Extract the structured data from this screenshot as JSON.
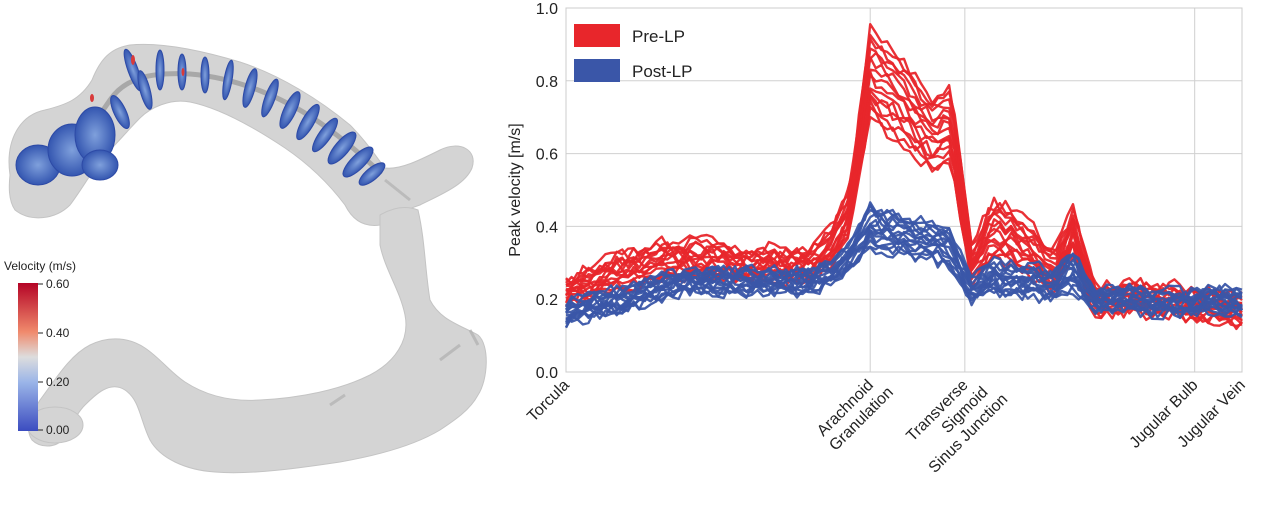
{
  "colorbar": {
    "title": "Velocity (m/s)",
    "ticks": [
      "0.60",
      "0.40",
      "0.20",
      "0.00"
    ],
    "colors": {
      "high": "#b40426",
      "mid": "#dddddd",
      "low": "#3b4cc0"
    }
  },
  "chart_data": {
    "type": "line",
    "ylabel": "Peak velocity [m/s]",
    "xlabel": "",
    "ylim": [
      0.0,
      1.0
    ],
    "yticks": [
      "0.0",
      "0.2",
      "0.4",
      "0.6",
      "0.8",
      "1.0"
    ],
    "grid": true,
    "legend_position": "top-left",
    "landmarks": [
      {
        "label": [
          "Torcula"
        ],
        "x": 0
      },
      {
        "label": [
          "Arachnoid",
          "Granulation"
        ],
        "x": 0.45
      },
      {
        "label": [
          "Transverse",
          "Sigmoid",
          "Sinus Junction"
        ],
        "x": 0.59
      },
      {
        "label": [
          "Jugular Bulb"
        ],
        "x": 0.93
      },
      {
        "label": [
          "Jugular Vein"
        ],
        "x": 1.0
      }
    ],
    "x": [
      0,
      0.03,
      0.06,
      0.09,
      0.12,
      0.15,
      0.18,
      0.21,
      0.24,
      0.27,
      0.3,
      0.33,
      0.36,
      0.39,
      0.42,
      0.45,
      0.48,
      0.51,
      0.54,
      0.57,
      0.6,
      0.63,
      0.66,
      0.69,
      0.72,
      0.75,
      0.78,
      0.81,
      0.84,
      0.87,
      0.9,
      0.93,
      0.96,
      1.0
    ],
    "series": [
      {
        "name": "Pre-LP",
        "color": "#e8262b",
        "mean": [
          0.22,
          0.24,
          0.27,
          0.28,
          0.29,
          0.31,
          0.31,
          0.31,
          0.3,
          0.29,
          0.3,
          0.29,
          0.3,
          0.34,
          0.44,
          0.82,
          0.77,
          0.72,
          0.65,
          0.68,
          0.29,
          0.39,
          0.37,
          0.33,
          0.27,
          0.39,
          0.2,
          0.2,
          0.21,
          0.19,
          0.2,
          0.18,
          0.18,
          0.17
        ],
        "spread": [
          0.03,
          0.04,
          0.04,
          0.05,
          0.05,
          0.05,
          0.05,
          0.05,
          0.04,
          0.04,
          0.04,
          0.04,
          0.04,
          0.05,
          0.06,
          0.12,
          0.12,
          0.11,
          0.1,
          0.1,
          0.05,
          0.08,
          0.08,
          0.07,
          0.05,
          0.06,
          0.04,
          0.04,
          0.04,
          0.04,
          0.04,
          0.04,
          0.04,
          0.04
        ],
        "curves": 16
      },
      {
        "name": "Post-LP",
        "color": "#3a56a8",
        "mean": [
          0.16,
          0.18,
          0.19,
          0.2,
          0.22,
          0.24,
          0.25,
          0.25,
          0.25,
          0.25,
          0.25,
          0.25,
          0.25,
          0.27,
          0.32,
          0.4,
          0.38,
          0.37,
          0.36,
          0.34,
          0.22,
          0.26,
          0.25,
          0.25,
          0.24,
          0.28,
          0.2,
          0.2,
          0.2,
          0.19,
          0.19,
          0.19,
          0.2,
          0.19
        ],
        "spread": [
          0.03,
          0.03,
          0.03,
          0.03,
          0.03,
          0.03,
          0.03,
          0.03,
          0.03,
          0.03,
          0.03,
          0.03,
          0.03,
          0.03,
          0.04,
          0.06,
          0.05,
          0.05,
          0.05,
          0.05,
          0.03,
          0.04,
          0.04,
          0.04,
          0.04,
          0.05,
          0.03,
          0.03,
          0.03,
          0.03,
          0.03,
          0.03,
          0.03,
          0.03
        ],
        "curves": 16
      }
    ]
  }
}
